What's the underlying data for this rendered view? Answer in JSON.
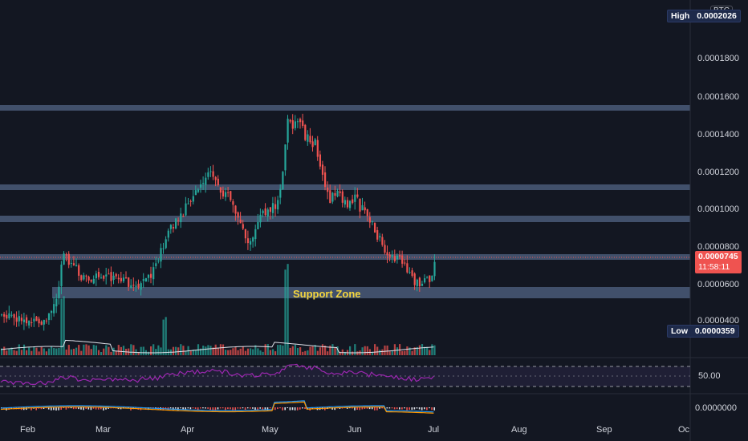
{
  "symbol_badge": "BTC",
  "price_axis": {
    "ticks": [
      "0.0001800",
      "0.0001600",
      "0.0001400",
      "0.0001200",
      "0.0001000",
      "0.0000800",
      "0.0000600",
      "0.0000400"
    ],
    "high_label": "High",
    "high_value": "0.0002026",
    "low_label": "Low",
    "low_value": "0.0000359",
    "current_price": "0.0000745",
    "countdown": "11:58:11"
  },
  "time_axis": {
    "labels": [
      "Feb",
      "Mar",
      "Apr",
      "May",
      "Jun",
      "Jul",
      "Aug",
      "Sep",
      "Oc"
    ]
  },
  "annotations": {
    "support_zone_label": "Support Zone"
  },
  "rsi_panel": {
    "tick": "50.00"
  },
  "macd_panel": {
    "tick": "0.0000000"
  },
  "colors": {
    "background": "#131722",
    "up": "#26a69a",
    "down": "#ef5350",
    "zone": "#4a5a78",
    "rsi_line": "#9c27b0",
    "macd_line": "#2196f3",
    "signal_line": "#ff9800",
    "label_text": "#f5d63d"
  }
}
